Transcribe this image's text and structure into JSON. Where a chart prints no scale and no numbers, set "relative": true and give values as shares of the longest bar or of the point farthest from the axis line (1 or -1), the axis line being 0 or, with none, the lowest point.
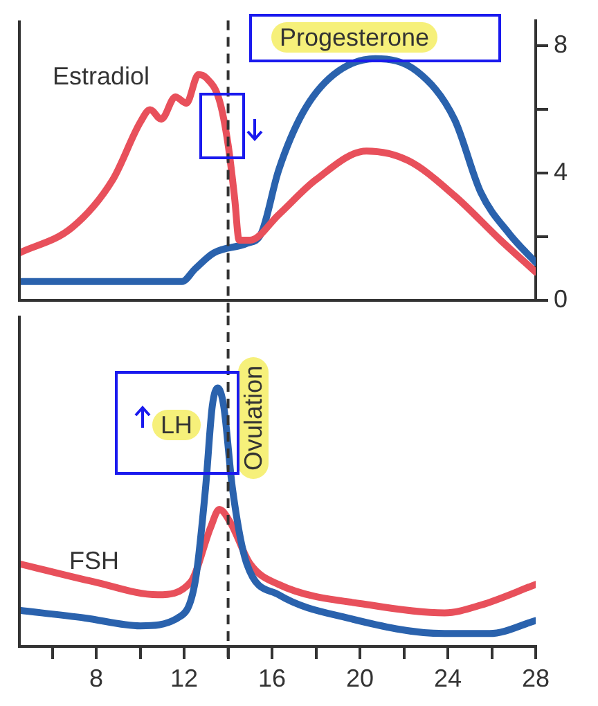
{
  "chart_data": [
    {
      "type": "line",
      "xlim": [
        4.5,
        28
      ],
      "ylim": [
        0,
        8.8
      ],
      "yticks": [
        0,
        {
          "value": 2,
          "label": null
        },
        4,
        {
          "value": 6,
          "label": null
        },
        8
      ],
      "tick_labels": "y",
      "grid": false,
      "ref_lines": [
        {
          "axis": "x",
          "value": 14,
          "line_style": "dashed",
          "color": "#333333"
        }
      ],
      "series": [
        {
          "name": "Estradiol",
          "color": "#e8505b",
          "x": [
            4.5,
            6.9,
            8.75,
            10.0,
            10.45,
            10.96,
            11.6,
            12.1,
            12.65,
            13.0,
            13.6,
            14.0,
            14.3,
            14.5,
            15.0,
            16.3,
            18.0,
            20.3,
            22.2,
            24.3,
            26.4,
            28
          ],
          "values": [
            1.5,
            2.3,
            3.8,
            5.6,
            6.0,
            5.7,
            6.4,
            6.2,
            7.1,
            7.0,
            6.3,
            4.9,
            3.2,
            1.9,
            1.9,
            2.7,
            3.8,
            4.7,
            4.4,
            3.3,
            1.9,
            0.9
          ]
        },
        {
          "name": "Progesterone",
          "color": "#2a62ad",
          "x": [
            4.5,
            11.9,
            12.5,
            13.35,
            14.85,
            15.5,
            16.3,
            17.4,
            18.8,
            20.7,
            22.6,
            24.3,
            25.5,
            26.8,
            28
          ],
          "values": [
            0.6,
            0.6,
            1.0,
            1.5,
            1.8,
            2.1,
            4.1,
            5.9,
            7.1,
            7.6,
            7.2,
            5.7,
            3.4,
            2.1,
            1.2
          ]
        }
      ]
    },
    {
      "type": "line",
      "relative": true,
      "xlim": [
        4.5,
        28
      ],
      "xticks": [
        {
          "value": 6,
          "label": null
        },
        8,
        {
          "value": 10,
          "label": null
        },
        12,
        {
          "value": 14,
          "label": null
        },
        16,
        {
          "value": 18,
          "label": null
        },
        20,
        {
          "value": 22,
          "label": null
        },
        24,
        {
          "value": 26,
          "label": null
        },
        28
      ],
      "tick_labels": "x",
      "grid": false,
      "ref_lines": [
        {
          "axis": "x",
          "value": 14,
          "line_style": "dashed",
          "color": "#333333",
          "label": "Ovulation"
        }
      ],
      "series": [
        {
          "name": "LH",
          "color": "#2a62ad",
          "x": [
            4.5,
            7.5,
            10.0,
            11.7,
            12.5,
            12.97,
            13.28,
            13.53,
            13.8,
            14.2,
            14.85,
            16.3,
            19.45,
            23.85,
            25.9,
            28
          ],
          "values": [
            0.14,
            0.11,
            0.08,
            0.11,
            0.25,
            0.61,
            0.93,
            1,
            0.93,
            0.61,
            0.32,
            0.2,
            0.11,
            0.05,
            0.05,
            0.1
          ]
        },
        {
          "name": "FSH",
          "color": "#e8505b",
          "x": [
            4.5,
            7.9,
            10.8,
            12.3,
            13.2,
            13.6,
            14.1,
            15.0,
            16.3,
            20.5,
            23.85,
            25.5,
            28
          ],
          "values": [
            0.32,
            0.25,
            0.2,
            0.25,
            0.46,
            0.53,
            0.48,
            0.32,
            0.24,
            0.16,
            0.13,
            0.16,
            0.24
          ]
        }
      ]
    }
  ]
}
